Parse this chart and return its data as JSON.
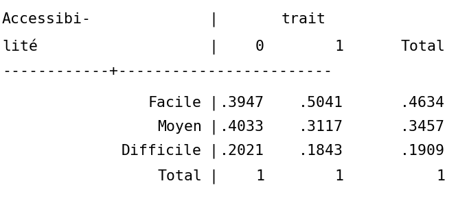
{
  "bg_color": "#ffffff",
  "font_family": "monospace",
  "font_size": 15.5,
  "text_color": "#000000",
  "header_row1_left": "Accessibi-",
  "header_row1_right": "trait",
  "header_row2": [
    "lité",
    "0",
    "1",
    "Total"
  ],
  "rows": [
    [
      "Facile",
      ".3947",
      ".5041",
      ".4634"
    ],
    [
      "Moyen",
      ".4033",
      ".3117",
      ".3457"
    ],
    [
      "Difficile",
      ".2021",
      ".1843",
      ".1909"
    ],
    [
      "Total",
      "1",
      "1",
      "1"
    ]
  ],
  "dash_str": "------------+------------------------",
  "figsize": [
    6.83,
    3.12
  ],
  "dpi": 100
}
